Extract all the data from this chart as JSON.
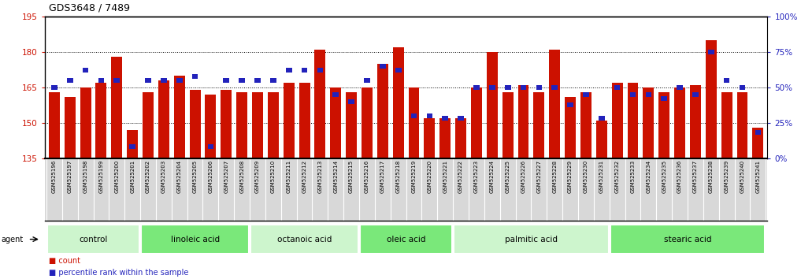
{
  "title": "GDS3648 / 7489",
  "samples": [
    "GSM525196",
    "GSM525197",
    "GSM525198",
    "GSM525199",
    "GSM525200",
    "GSM525201",
    "GSM525202",
    "GSM525203",
    "GSM525204",
    "GSM525205",
    "GSM525206",
    "GSM525207",
    "GSM525208",
    "GSM525209",
    "GSM525210",
    "GSM525211",
    "GSM525212",
    "GSM525213",
    "GSM525214",
    "GSM525215",
    "GSM525216",
    "GSM525217",
    "GSM525218",
    "GSM525219",
    "GSM525220",
    "GSM525221",
    "GSM525222",
    "GSM525223",
    "GSM525224",
    "GSM525225",
    "GSM525226",
    "GSM525227",
    "GSM525228",
    "GSM525229",
    "GSM525230",
    "GSM525231",
    "GSM525232",
    "GSM525233",
    "GSM525234",
    "GSM525235",
    "GSM525236",
    "GSM525237",
    "GSM525238",
    "GSM525239",
    "GSM525240",
    "GSM525241"
  ],
  "red_values": [
    163,
    161,
    165,
    167,
    178,
    147,
    163,
    168,
    170,
    164,
    162,
    164,
    163,
    163,
    163,
    167,
    167,
    181,
    165,
    163,
    165,
    175,
    182,
    165,
    152,
    152,
    152,
    165,
    180,
    163,
    166,
    163,
    181,
    161,
    163,
    151,
    167,
    167,
    165,
    163,
    165,
    166,
    185,
    163,
    163,
    148
  ],
  "blue_values": [
    50,
    55,
    62,
    55,
    55,
    8,
    55,
    55,
    55,
    58,
    8,
    55,
    55,
    55,
    55,
    62,
    62,
    62,
    45,
    40,
    55,
    65,
    62,
    30,
    30,
    28,
    28,
    50,
    50,
    50,
    50,
    50,
    50,
    38,
    45,
    28,
    50,
    45,
    45,
    42,
    50,
    45,
    75,
    55,
    50,
    18
  ],
  "groups": [
    {
      "label": "control",
      "start": 0,
      "end": 6,
      "color": "#cdf5cd"
    },
    {
      "label": "linoleic acid",
      "start": 6,
      "end": 13,
      "color": "#7ae87a"
    },
    {
      "label": "octanoic acid",
      "start": 13,
      "end": 20,
      "color": "#cdf5cd"
    },
    {
      "label": "oleic acid",
      "start": 20,
      "end": 26,
      "color": "#7ae87a"
    },
    {
      "label": "palmitic acid",
      "start": 26,
      "end": 36,
      "color": "#cdf5cd"
    },
    {
      "label": "stearic acid",
      "start": 36,
      "end": 46,
      "color": "#7ae87a"
    }
  ],
  "ylim_left": [
    135,
    195
  ],
  "ylim_right": [
    0,
    100
  ],
  "yticks_left": [
    135,
    150,
    165,
    180,
    195
  ],
  "yticks_right": [
    0,
    25,
    50,
    75,
    100
  ],
  "ytick_labels_right": [
    "0%",
    "25%",
    "50%",
    "75%",
    "100%"
  ],
  "red_color": "#cc1100",
  "blue_color": "#2222bb",
  "bar_width": 0.7,
  "bg_color": "#ffffff",
  "plot_bg_color": "#ffffff",
  "label_bg_color": "#d8d8d8",
  "grid_color": "#000000",
  "grid_style": ":"
}
